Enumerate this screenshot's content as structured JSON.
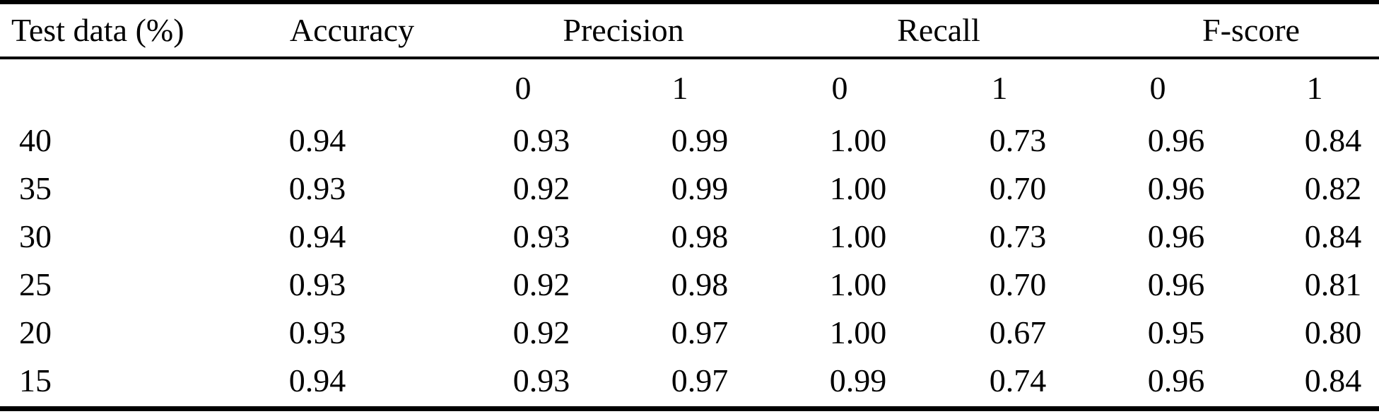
{
  "colors": {
    "background": "#ffffff",
    "text": "#000000",
    "rule": "#000000"
  },
  "table": {
    "header": {
      "test_data": "Test data (%)",
      "accuracy": "Accuracy",
      "precision": "Precision",
      "recall": "Recall",
      "fscore": "F-score"
    },
    "subheader": {
      "precision_0": "0",
      "precision_1": "1",
      "recall_0": "0",
      "recall_1": "1",
      "fscore_0": "0",
      "fscore_1": "1"
    },
    "rows": [
      {
        "test_data": "40",
        "accuracy": "0.94",
        "precision_0": "0.93",
        "precision_1": "0.99",
        "recall_0": "1.00",
        "recall_1": "0.73",
        "fscore_0": "0.96",
        "fscore_1": "0.84"
      },
      {
        "test_data": "35",
        "accuracy": "0.93",
        "precision_0": "0.92",
        "precision_1": "0.99",
        "recall_0": "1.00",
        "recall_1": "0.70",
        "fscore_0": "0.96",
        "fscore_1": "0.82"
      },
      {
        "test_data": "30",
        "accuracy": "0.94",
        "precision_0": "0.93",
        "precision_1": "0.98",
        "recall_0": "1.00",
        "recall_1": "0.73",
        "fscore_0": "0.96",
        "fscore_1": "0.84"
      },
      {
        "test_data": "25",
        "accuracy": "0.93",
        "precision_0": "0.92",
        "precision_1": "0.98",
        "recall_0": "1.00",
        "recall_1": "0.70",
        "fscore_0": "0.96",
        "fscore_1": "0.81"
      },
      {
        "test_data": "20",
        "accuracy": "0.93",
        "precision_0": "0.92",
        "precision_1": "0.97",
        "recall_0": "1.00",
        "recall_1": "0.67",
        "fscore_0": "0.95",
        "fscore_1": "0.80"
      },
      {
        "test_data": "15",
        "accuracy": "0.94",
        "precision_0": "0.93",
        "precision_1": "0.97",
        "recall_0": "0.99",
        "recall_1": "0.74",
        "fscore_0": "0.96",
        "fscore_1": "0.84"
      }
    ]
  },
  "chart_data": {
    "type": "table",
    "columns": [
      "Test data (%)",
      "Accuracy",
      "Precision 0",
      "Precision 1",
      "Recall 0",
      "Recall 1",
      "F-score 0",
      "F-score 1"
    ],
    "rows": [
      [
        40,
        0.94,
        0.93,
        0.99,
        1.0,
        0.73,
        0.96,
        0.84
      ],
      [
        35,
        0.93,
        0.92,
        0.99,
        1.0,
        0.7,
        0.96,
        0.82
      ],
      [
        30,
        0.94,
        0.93,
        0.98,
        1.0,
        0.73,
        0.96,
        0.84
      ],
      [
        25,
        0.93,
        0.92,
        0.98,
        1.0,
        0.7,
        0.96,
        0.81
      ],
      [
        20,
        0.93,
        0.92,
        0.97,
        1.0,
        0.67,
        0.95,
        0.8
      ],
      [
        15,
        0.94,
        0.93,
        0.97,
        0.99,
        0.74,
        0.96,
        0.84
      ]
    ]
  }
}
